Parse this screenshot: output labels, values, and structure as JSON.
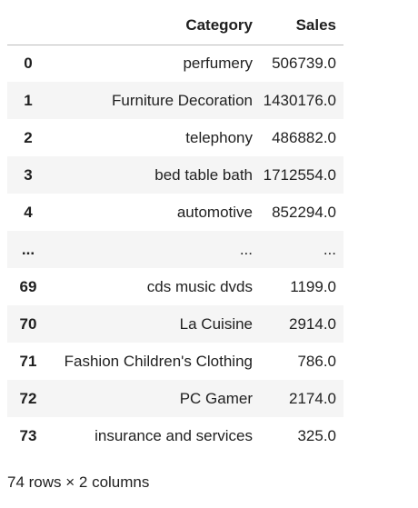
{
  "table": {
    "columns": {
      "index": "",
      "category": "Category",
      "sales": "Sales"
    },
    "rows": [
      {
        "index": "0",
        "category": "perfumery",
        "sales": "506739.0"
      },
      {
        "index": "1",
        "category": "Furniture Decoration",
        "sales": "1430176.0"
      },
      {
        "index": "2",
        "category": "telephony",
        "sales": "486882.0"
      },
      {
        "index": "3",
        "category": "bed table bath",
        "sales": "1712554.0"
      },
      {
        "index": "4",
        "category": "automotive",
        "sales": "852294.0"
      },
      {
        "index": "...",
        "category": "...",
        "sales": "..."
      },
      {
        "index": "69",
        "category": "cds music dvds",
        "sales": "1199.0"
      },
      {
        "index": "70",
        "category": "La Cuisine",
        "sales": "2914.0"
      },
      {
        "index": "71",
        "category": "Fashion Children's Clothing",
        "sales": "786.0"
      },
      {
        "index": "72",
        "category": "PC Gamer",
        "sales": "2174.0"
      },
      {
        "index": "73",
        "category": "insurance and services",
        "sales": "325.0"
      }
    ]
  },
  "footer": {
    "shape_text": "74 rows × 2 columns"
  }
}
